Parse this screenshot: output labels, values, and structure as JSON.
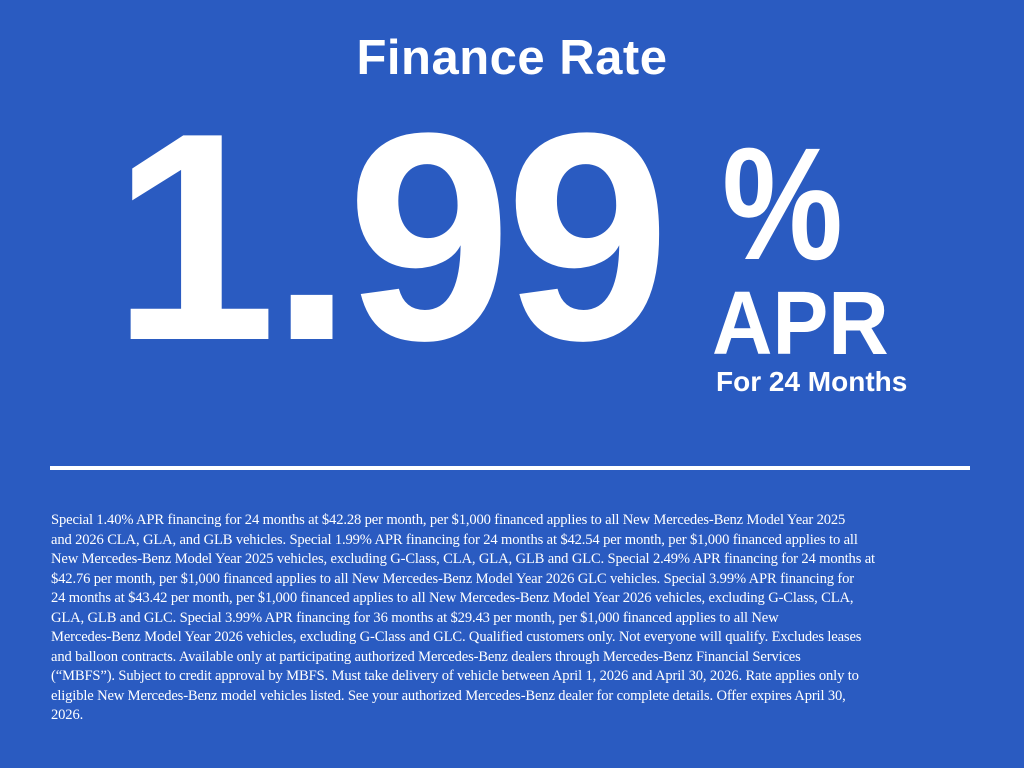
{
  "title": "Finance Rate",
  "rate": {
    "value": "1.99",
    "percent_sign": "%",
    "apr_label": "APR",
    "term": "For 24 Months"
  },
  "colors": {
    "background": "#2a5bc1",
    "text": "#ffffff"
  },
  "disclaimer_lines": [
    "Special 1.40% APR financing for 24 months at $42.28 per month, per $1,000 financed applies to all New Mercedes-Benz Model Year 2025",
    "and 2026 CLA, GLA, and GLB vehicles. Special 1.99% APR financing for 24 months at $42.54 per month, per $1,000 financed applies to all",
    "New Mercedes-Benz Model Year 2025 vehicles, excluding G-Class, CLA, GLA, GLB and GLC. Special 2.49% APR financing for 24 months at",
    "$42.76 per month, per $1,000 financed applies to all New Mercedes-Benz Model Year 2026 GLC vehicles. Special 3.99% APR financing for",
    "24 months at $43.42 per month, per $1,000 financed applies to all New Mercedes-Benz Model Year 2026 vehicles, excluding G-Class, CLA,",
    "GLA, GLB and GLC. Special 3.99% APR financing for 36 months at $29.43 per month, per $1,000 financed applies to all New",
    "Mercedes-Benz Model Year 2026 vehicles, excluding G-Class and GLC. Qualified customers only. Not everyone will qualify. Excludes leases",
    "and balloon contracts. Available only at participating authorized Mercedes-Benz dealers through Mercedes-Benz Financial Services",
    "(“MBFS”). Subject to credit approval by MBFS. Must take delivery of vehicle between April 1, 2026 and April 30, 2026. Rate applies only to",
    "eligible New Mercedes-Benz model vehicles listed. See your authorized Mercedes-Benz dealer for complete details. Offer expires April 30,",
    "2026."
  ]
}
